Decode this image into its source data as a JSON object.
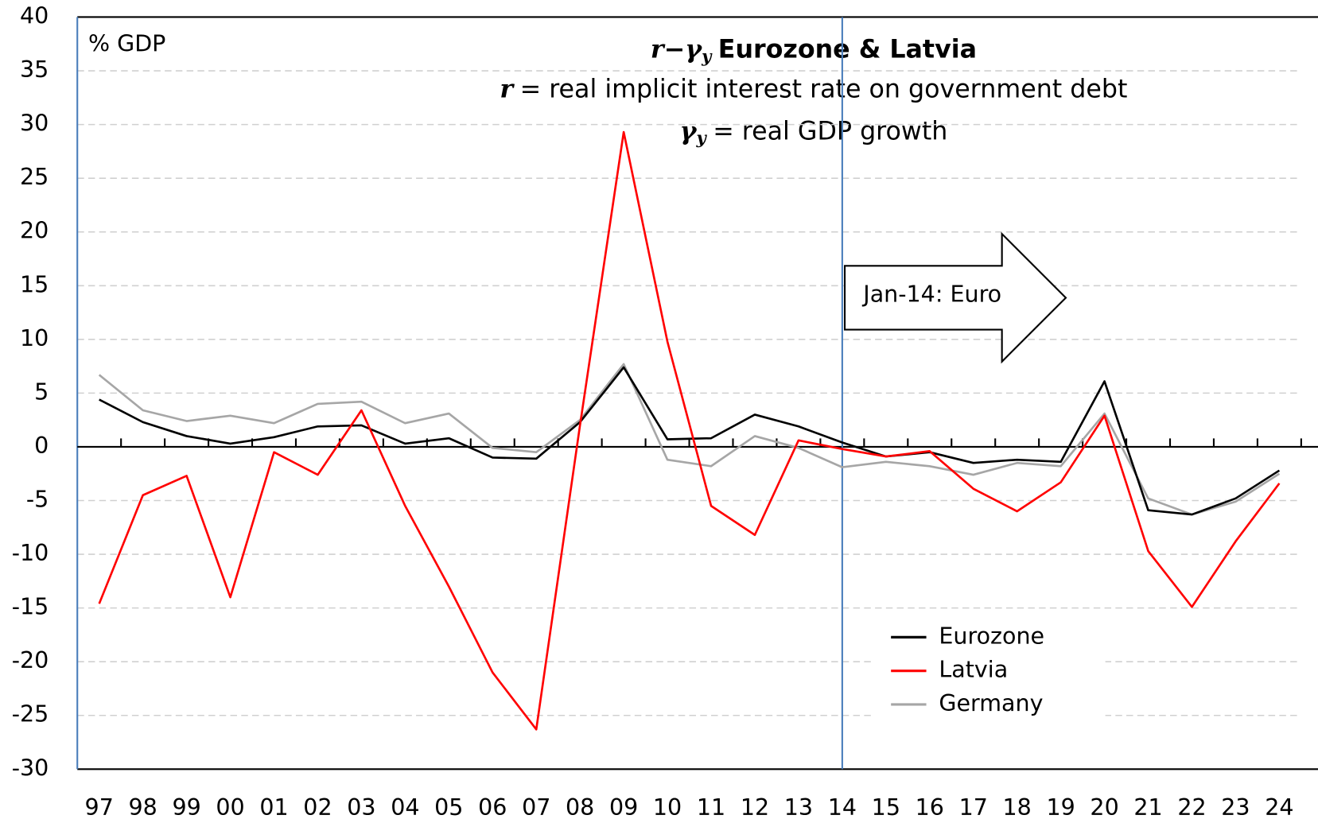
{
  "chart_data": {
    "type": "line",
    "unit_label": "% GDP",
    "title_symbol": "r−γ",
    "title_symbol_sub": "y",
    "title_text": "Eurozone & Latvia",
    "subtitle1_symbol": "r",
    "subtitle1_text": "= real implicit interest rate on government debt",
    "subtitle2_symbol": "γ",
    "subtitle2_symbol_sub": "y",
    "subtitle2_text": "= real GDP growth",
    "annotation": "Jan-14: Euro",
    "annotation_category": "14",
    "categories": [
      "97",
      "98",
      "99",
      "00",
      "01",
      "02",
      "03",
      "04",
      "05",
      "06",
      "07",
      "08",
      "09",
      "10",
      "11",
      "12",
      "13",
      "14",
      "15",
      "16",
      "17",
      "18",
      "19",
      "20",
      "21",
      "22",
      "23",
      "24"
    ],
    "series": [
      {
        "name": "Eurozone",
        "color": "#000000",
        "values": [
          4.4,
          2.3,
          1.0,
          0.3,
          0.9,
          1.9,
          2.0,
          0.3,
          0.8,
          -1.0,
          -1.1,
          2.3,
          7.4,
          0.7,
          0.8,
          3.0,
          1.9,
          0.4,
          -0.9,
          -0.5,
          -1.5,
          -1.2,
          -1.4,
          6.1,
          -5.9,
          -6.3,
          -4.8,
          -2.2
        ]
      },
      {
        "name": "Latvia",
        "color": "#ff0000",
        "values": [
          -14.6,
          -4.5,
          -2.7,
          -14.0,
          -0.5,
          -2.6,
          3.4,
          -5.5,
          -13.0,
          -21.0,
          -26.3,
          2.0,
          29.3,
          9.8,
          -5.5,
          -8.2,
          0.6,
          -0.2,
          -0.9,
          -0.4,
          -3.9,
          -6.0,
          -3.3,
          2.9,
          -9.7,
          -14.9,
          -8.8,
          -3.4
        ]
      },
      {
        "name": "Germany",
        "color": "#a6a6a6",
        "values": [
          6.7,
          3.4,
          2.4,
          2.9,
          2.2,
          4.0,
          4.2,
          2.2,
          3.1,
          -0.1,
          -0.5,
          2.5,
          7.7,
          -1.2,
          -1.8,
          1.0,
          -0.1,
          -1.9,
          -1.4,
          -1.8,
          -2.6,
          -1.5,
          -1.8,
          3.1,
          -4.8,
          -6.3,
          -5.1,
          -2.5
        ]
      }
    ],
    "ylim": [
      -30,
      40
    ],
    "yticks": [
      -30,
      -25,
      -20,
      -15,
      -10,
      -5,
      0,
      5,
      10,
      15,
      20,
      25,
      30,
      35,
      40
    ],
    "grid": true
  }
}
